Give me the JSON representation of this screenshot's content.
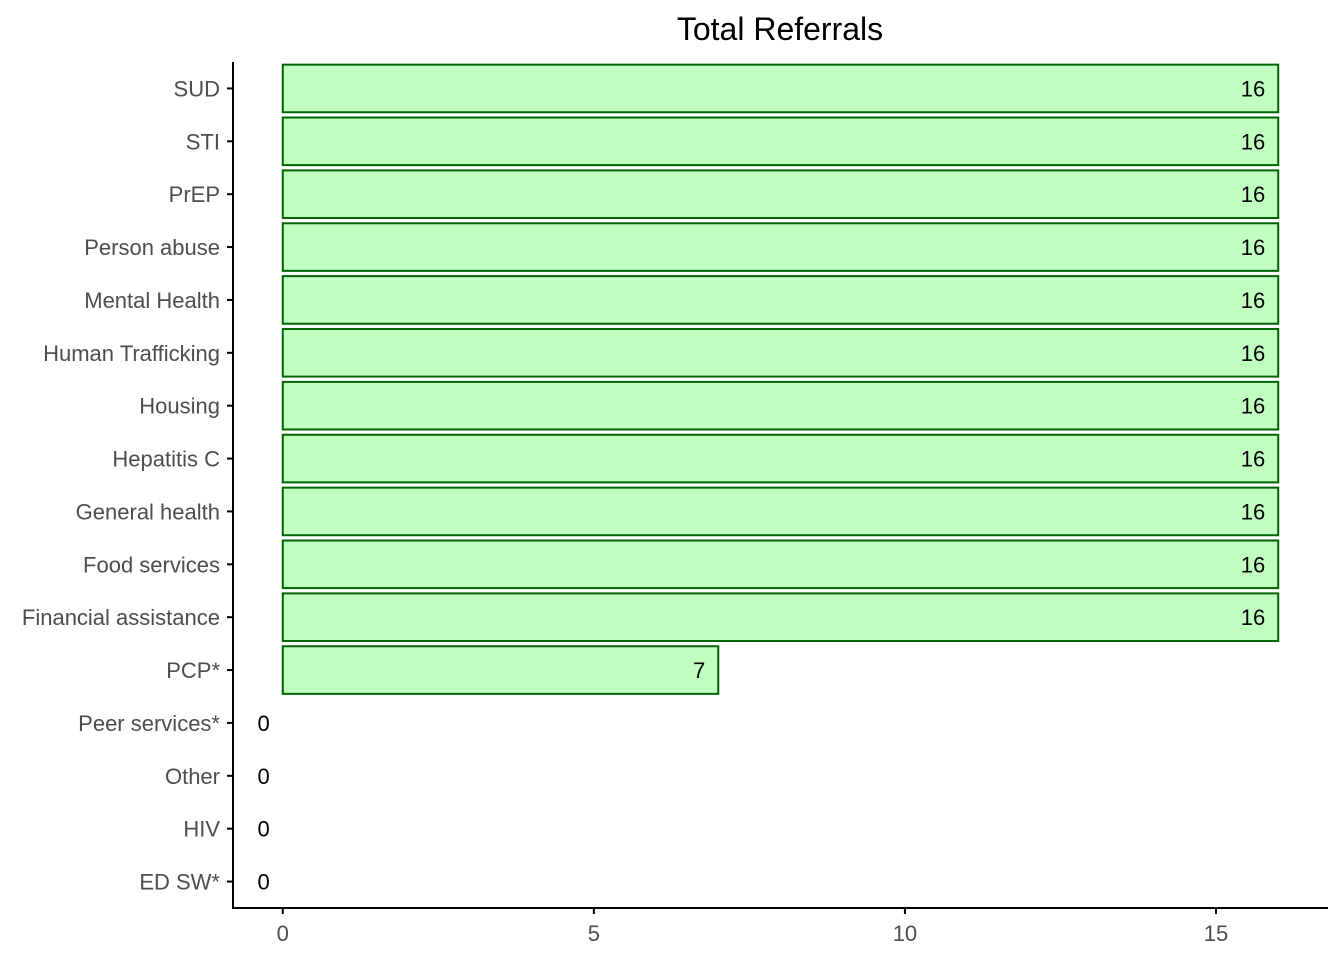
{
  "chart_data": {
    "type": "bar",
    "orientation": "horizontal",
    "title": "Total Referrals",
    "xlabel": "",
    "ylabel": "",
    "categories": [
      "SUD",
      "STI",
      "PrEP",
      "Person abuse",
      "Mental Health",
      "Human Trafficking",
      "Housing",
      "Hepatitis C",
      "General health",
      "Food services",
      "Financial assistance",
      "PCP*",
      "Peer services*",
      "Other",
      "HIV",
      "ED SW*"
    ],
    "values": [
      16,
      16,
      16,
      16,
      16,
      16,
      16,
      16,
      16,
      16,
      16,
      7,
      0,
      0,
      0,
      0
    ],
    "value_labels": [
      "16",
      "16",
      "16",
      "16",
      "16",
      "16",
      "16",
      "16",
      "16",
      "16",
      "16",
      "7",
      "0",
      "0",
      "0",
      "0"
    ],
    "xlim": [
      -0.8,
      16.8
    ],
    "xticks": [
      0,
      5,
      10,
      15
    ],
    "xtick_labels": [
      "0",
      "5",
      "10",
      "15"
    ],
    "grid": false,
    "legend": "none",
    "colors": {
      "bar_fill": "#c1ffc1",
      "bar_stroke": "#006400",
      "axis": "#000000",
      "tick_text": "#4d4d4d",
      "value_text": "#000000"
    }
  }
}
